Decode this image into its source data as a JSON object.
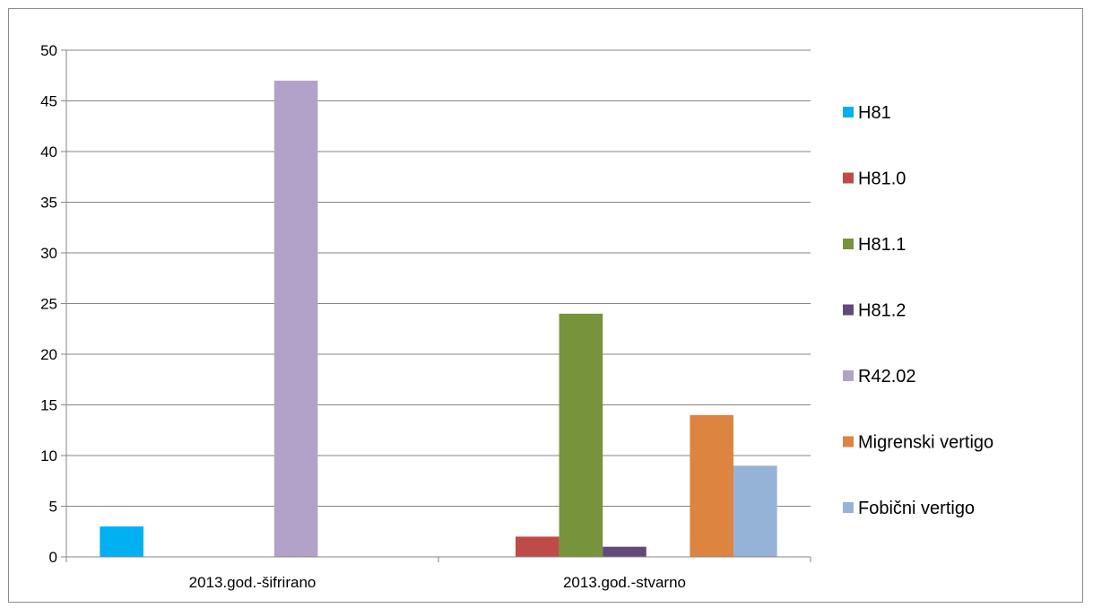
{
  "chart_data": {
    "type": "bar",
    "categories": [
      "2013.god.-šifrirano",
      "2013.god.-stvarno"
    ],
    "series": [
      {
        "name": "H81",
        "values": [
          3,
          0
        ],
        "color": "#00b0f0"
      },
      {
        "name": "H81.0",
        "values": [
          0,
          2
        ],
        "color": "#be4b48"
      },
      {
        "name": "H81.1",
        "values": [
          0,
          24
        ],
        "color": "#77933c"
      },
      {
        "name": "H81.2",
        "values": [
          0,
          1
        ],
        "color": "#604a7b"
      },
      {
        "name": "R42.02",
        "values": [
          47,
          0
        ],
        "color": "#b3a2c7"
      },
      {
        "name": "Migrenski vertigo",
        "values": [
          0,
          14
        ],
        "color": "#dd8440"
      },
      {
        "name": "Fobični vertigo",
        "values": [
          0,
          9
        ],
        "color": "#95b3d7"
      }
    ],
    "ylim": [
      0,
      50
    ],
    "yticks": [
      "0",
      "5",
      "10",
      "15",
      "20",
      "25",
      "30",
      "35",
      "40",
      "45",
      "50"
    ],
    "grid": true,
    "legend_position": "right"
  }
}
